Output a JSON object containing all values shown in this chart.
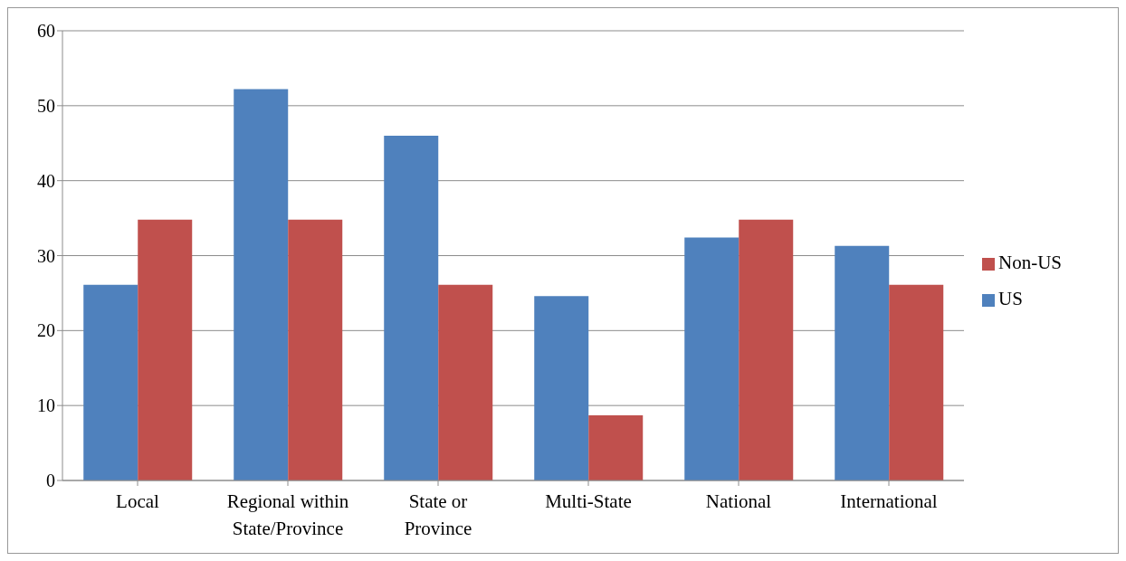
{
  "chart_data": {
    "type": "bar",
    "categories": [
      "Local",
      "Regional within State/Province",
      "State or Province",
      "Multi-State",
      "National",
      "International"
    ],
    "series": [
      {
        "name": "US",
        "color": "#4f81bd",
        "values": [
          26.1,
          52.2,
          46.0,
          24.6,
          32.4,
          31.3
        ]
      },
      {
        "name": "Non-US",
        "color": "#c0504d",
        "values": [
          34.8,
          34.8,
          26.1,
          8.7,
          34.8,
          26.1
        ]
      }
    ],
    "ylim": [
      0,
      60
    ],
    "yticks": [
      0,
      10,
      20,
      30,
      40,
      50,
      60
    ],
    "grid": "y",
    "legend": "right"
  }
}
